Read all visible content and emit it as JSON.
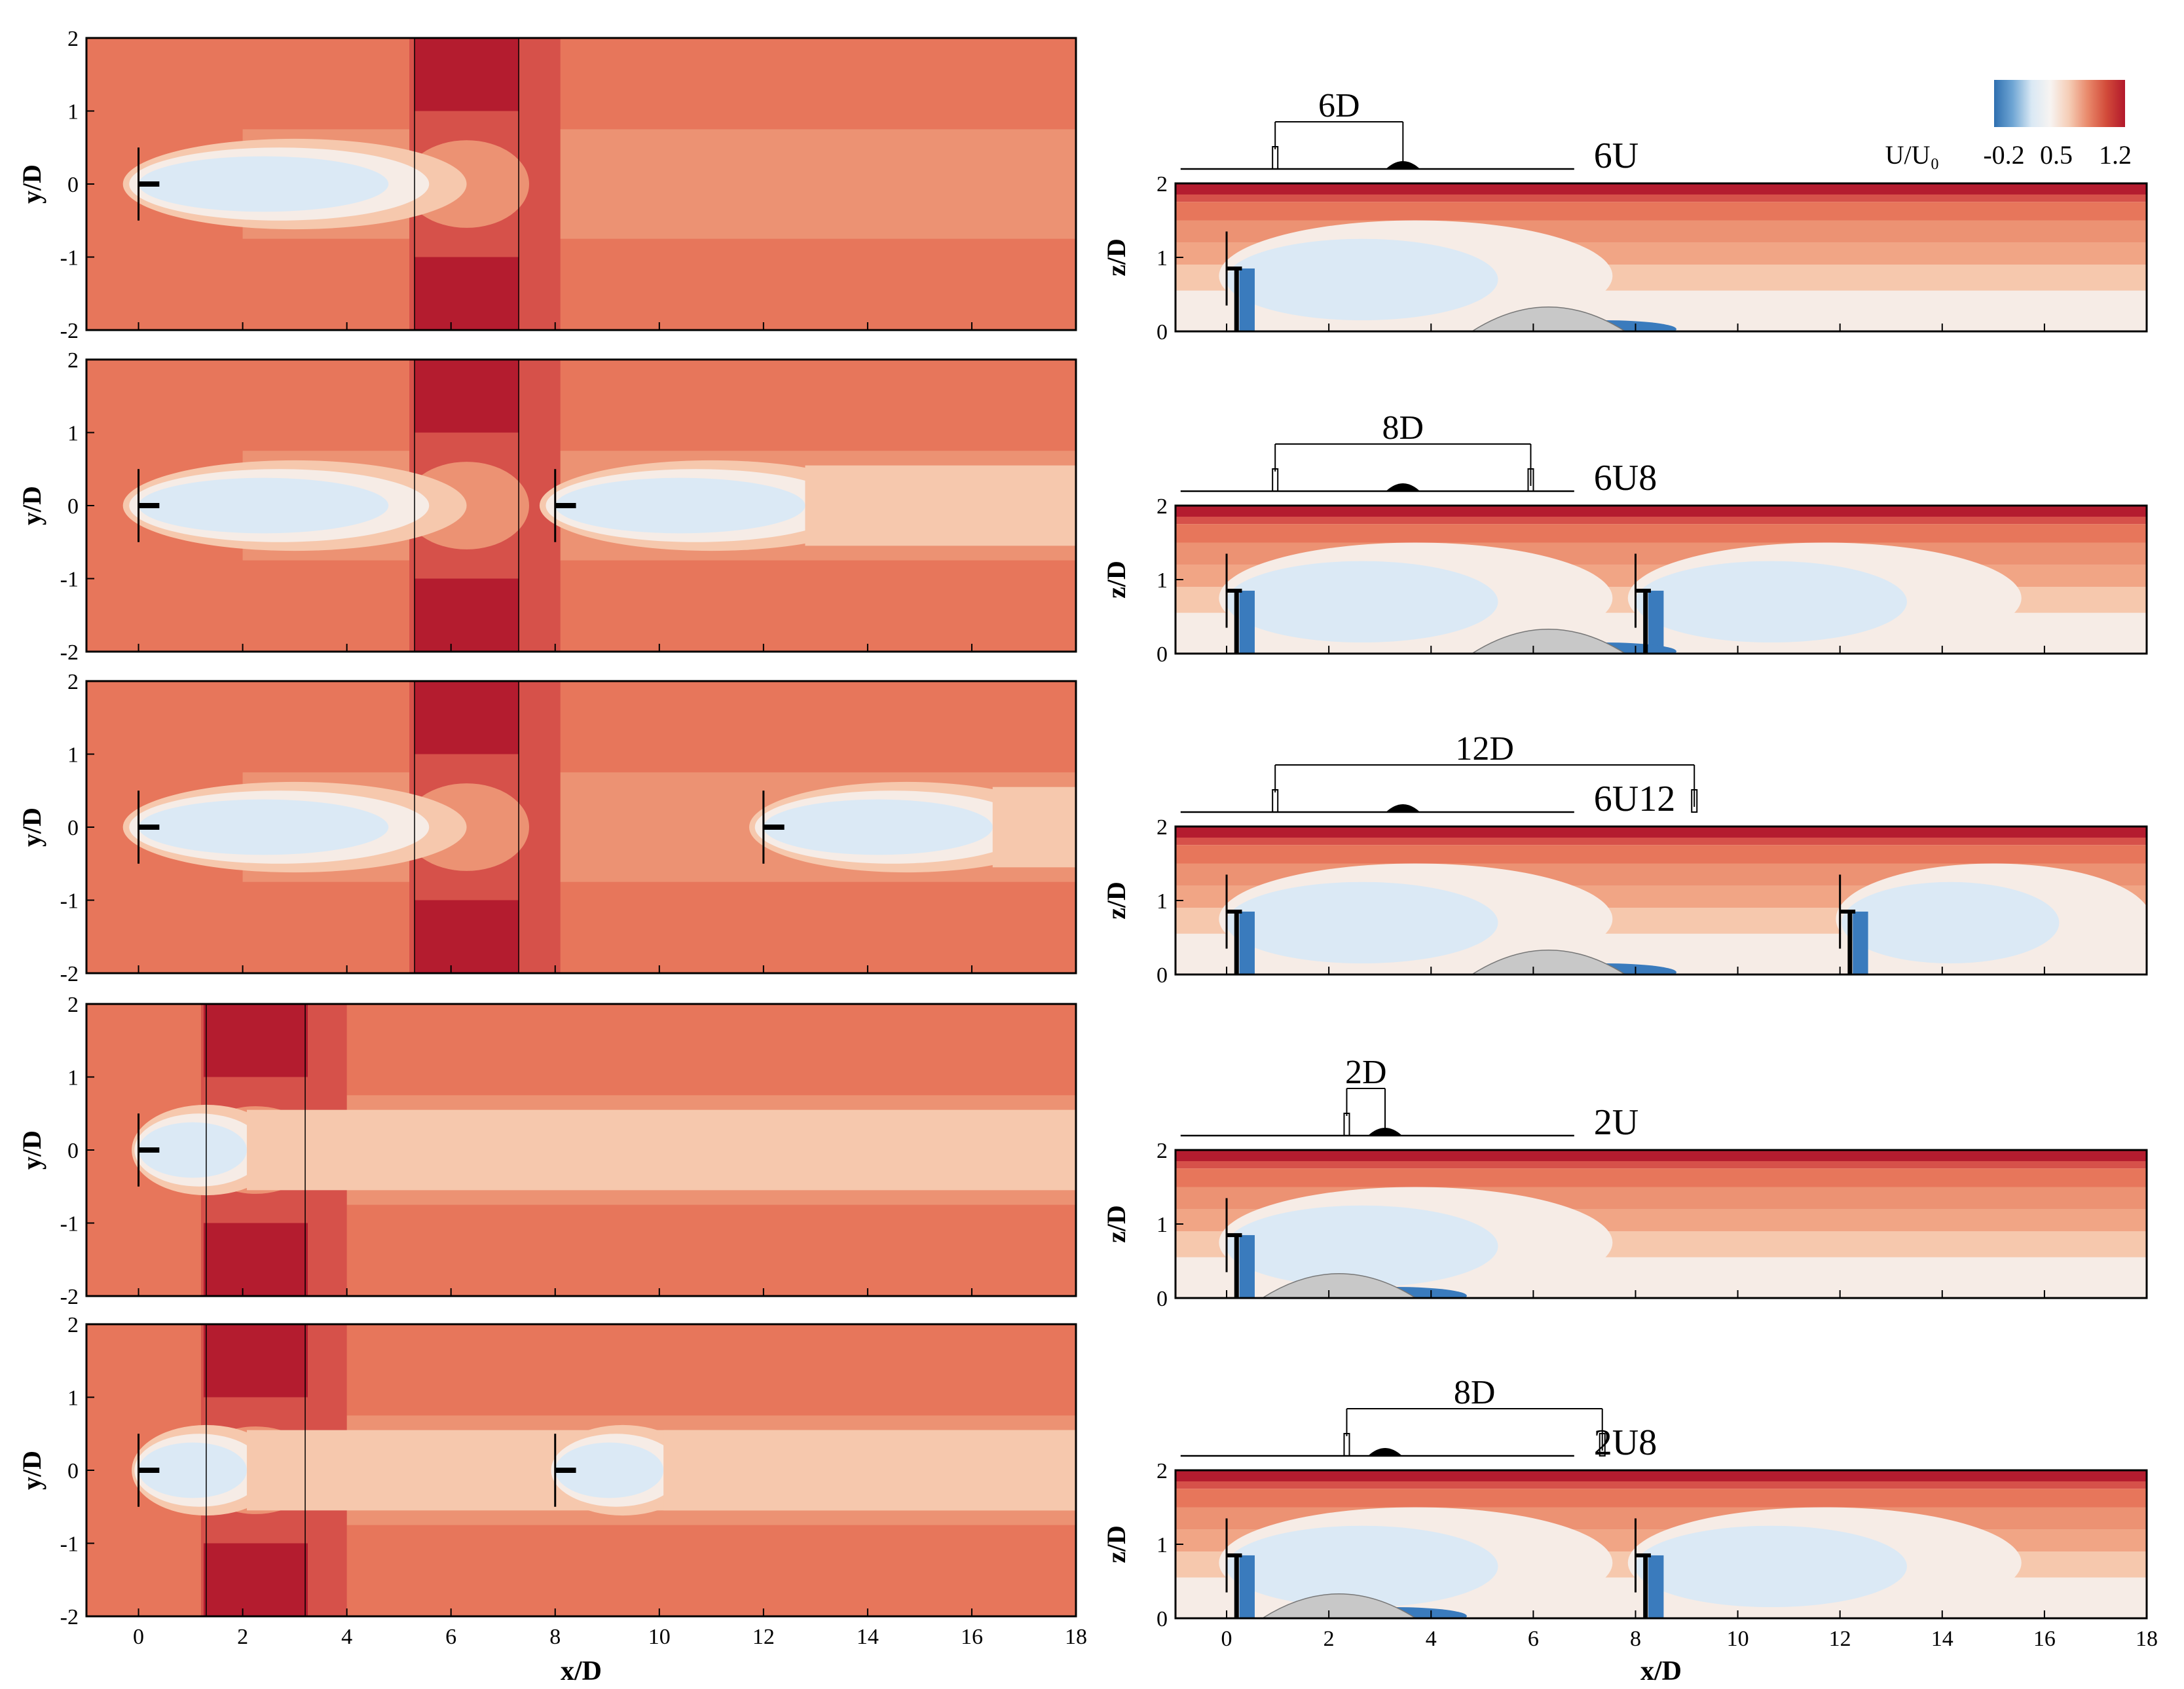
{
  "chart_data": {
    "type": "heatmap",
    "colorbar": {
      "title": "U/U₀",
      "tick_labels": [
        "-0.2",
        "0.5",
        "1.2"
      ],
      "range": [
        -0.2,
        1.2
      ],
      "colors": [
        "#2f6fb0",
        "#6fa6d4",
        "#d9e8f4",
        "#f7f4f2",
        "#f5cdb6",
        "#e9896b",
        "#d24b3a",
        "#b2182b"
      ]
    },
    "colormap": {
      "deep_blue": "#3a7bbd",
      "light_blue": "#dbe9f5",
      "near_white": "#f6ece6",
      "pale_orange": "#f6c8ad",
      "light_orange": "#f1a585",
      "orange": "#ec9273",
      "mid_red": "#e7765b",
      "red": "#d6514a",
      "dark_red": "#b41c2f",
      "hill_grey": "#c8c8c8"
    },
    "left_panels": {
      "xlabel": "x/D",
      "ylabel": "y/D",
      "xlim": [
        -1,
        18
      ],
      "ylim": [
        -2,
        2
      ],
      "x_ticks": [
        "0",
        "2",
        "4",
        "6",
        "8",
        "10",
        "12",
        "14",
        "16",
        "18"
      ],
      "y_ticks": [
        "-2",
        "-1",
        "0",
        "1",
        "2"
      ],
      "panels": [
        {
          "case": "6U",
          "turbines_x": [
            0
          ],
          "hill_lines_x": [
            5.3,
            7.3
          ]
        },
        {
          "case": "6U8",
          "turbines_x": [
            0,
            8
          ],
          "hill_lines_x": [
            5.3,
            7.3
          ]
        },
        {
          "case": "6U12",
          "turbines_x": [
            0,
            12
          ],
          "hill_lines_x": [
            5.3,
            7.3
          ]
        },
        {
          "case": "2U",
          "turbines_x": [
            0
          ],
          "hill_lines_x": [
            1.3,
            3.2
          ]
        },
        {
          "case": "2U8",
          "turbines_x": [
            0,
            8
          ],
          "hill_lines_x": [
            1.3,
            3.2
          ]
        }
      ]
    },
    "right_panels": {
      "xlabel": "x/D",
      "ylabel": "z/D",
      "xlim": [
        -1,
        18
      ],
      "ylim": [
        0,
        2
      ],
      "x_ticks": [
        "0",
        "2",
        "4",
        "6",
        "8",
        "10",
        "12",
        "14",
        "16",
        "18"
      ],
      "y_ticks": [
        "0",
        "1",
        "2"
      ],
      "panels": [
        {
          "case": "6U",
          "spacing_label": "6D",
          "hill_x": 6.3,
          "turbines_x": [
            0.2
          ]
        },
        {
          "case": "6U8",
          "spacing_label": "8D",
          "hill_x": 6.3,
          "turbines_x": [
            0.2,
            8.2
          ]
        },
        {
          "case": "6U12",
          "spacing_label": "12D",
          "hill_x": 6.3,
          "turbines_x": [
            0.2,
            12.2
          ]
        },
        {
          "case": "2U",
          "spacing_label": "2D",
          "hill_x": 2.2,
          "turbines_x": [
            0.2
          ]
        },
        {
          "case": "2U8",
          "spacing_label": "8D",
          "hill_x": 2.2,
          "turbines_x": [
            0.2,
            8.2
          ]
        }
      ]
    }
  }
}
